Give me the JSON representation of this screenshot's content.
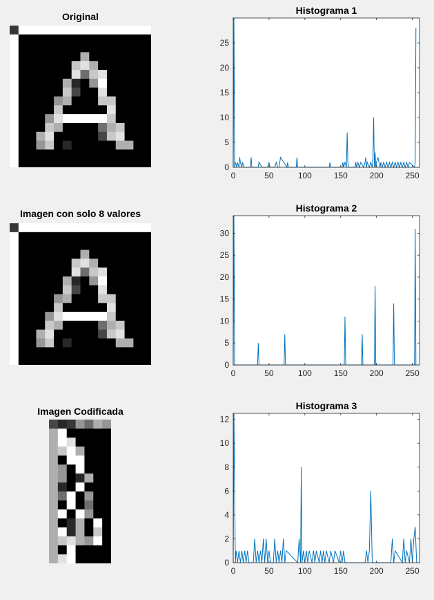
{
  "images": [
    {
      "title": "Original"
    },
    {
      "title": "Imagen con solo 8 valores"
    },
    {
      "title": "Imagen Codificada"
    }
  ],
  "chart_data": [
    {
      "type": "line",
      "title": "Histograma 1",
      "xlim": [
        0,
        260
      ],
      "ylim": [
        0,
        30
      ],
      "xticks": [
        0,
        50,
        100,
        150,
        200,
        250
      ],
      "yticks": [
        0,
        5,
        10,
        15,
        20,
        25
      ],
      "color": "#0072bd",
      "series": [
        {
          "x": [
            0,
            1,
            2,
            3,
            5,
            6,
            8,
            9,
            10,
            12,
            13,
            15,
            24,
            25,
            26,
            30,
            35,
            36,
            40,
            41,
            48,
            50,
            51,
            58,
            60,
            62,
            64,
            65,
            66,
            75,
            76,
            77,
            88,
            89,
            90,
            134,
            135,
            136,
            152,
            153,
            154,
            156,
            158,
            159,
            160,
            161,
            170,
            171,
            172,
            174,
            176,
            178,
            182,
            184,
            185,
            186,
            187,
            190,
            192,
            194,
            195,
            196,
            197,
            198,
            199,
            200,
            202,
            205,
            206,
            208,
            210,
            212,
            214,
            216,
            218,
            220,
            222,
            224,
            226,
            228,
            230,
            232,
            234,
            236,
            238,
            240,
            242,
            244,
            246,
            253,
            254,
            255
          ],
          "y": [
            0,
            30,
            0,
            1,
            0,
            1,
            0,
            2,
            1,
            0,
            1,
            0,
            0,
            2,
            0,
            0,
            0,
            1,
            0,
            0,
            0,
            1,
            0,
            0,
            1,
            0,
            0,
            1,
            2,
            0,
            1,
            0,
            0,
            2,
            0,
            0,
            1,
            0,
            0,
            1,
            0,
            1,
            0,
            7,
            1,
            0,
            0,
            1,
            0,
            1,
            0,
            1,
            0,
            1,
            2,
            0,
            1,
            0,
            1,
            0,
            2,
            10,
            0,
            3,
            0,
            1,
            2,
            0,
            1,
            0,
            1,
            0,
            1,
            0,
            1,
            0,
            1,
            0,
            1,
            0,
            1,
            0,
            1,
            0,
            1,
            0,
            1,
            0,
            1,
            0,
            1,
            28
          ]
        }
      ]
    },
    {
      "type": "line",
      "title": "Histograma 2",
      "xlim": [
        0,
        260
      ],
      "ylim": [
        0,
        34
      ],
      "xticks": [
        0,
        50,
        100,
        150,
        200,
        250
      ],
      "yticks": [
        0,
        5,
        10,
        15,
        20,
        25,
        30
      ],
      "color": "#0072bd",
      "series": [
        {
          "x": [
            0,
            1,
            2,
            34,
            35,
            36,
            71,
            72,
            73,
            155,
            156,
            157,
            179,
            180,
            181,
            197,
            198,
            199,
            223,
            224,
            225,
            253,
            254,
            255
          ],
          "y": [
            0,
            34,
            0,
            0,
            5,
            0,
            0,
            7,
            0,
            0,
            11,
            0,
            0,
            7,
            0,
            0,
            18,
            0,
            0,
            14,
            0,
            0,
            31,
            0
          ]
        }
      ]
    },
    {
      "type": "line",
      "title": "Histograma 3",
      "xlim": [
        0,
        260
      ],
      "ylim": [
        0,
        12.5
      ],
      "xticks": [
        0,
        50,
        100,
        150,
        200,
        250
      ],
      "yticks": [
        0,
        2,
        4,
        6,
        8,
        10,
        12
      ],
      "color": "#0072bd",
      "series": [
        {
          "x": [
            0,
            1,
            3,
            4,
            6,
            8,
            10,
            12,
            14,
            16,
            18,
            20,
            22,
            28,
            30,
            32,
            34,
            36,
            38,
            40,
            42,
            44,
            46,
            48,
            50,
            52,
            56,
            58,
            60,
            62,
            64,
            66,
            68,
            70,
            72,
            74,
            90,
            92,
            94,
            95,
            96,
            98,
            100,
            102,
            104,
            106,
            110,
            112,
            114,
            116,
            120,
            122,
            124,
            126,
            128,
            130,
            134,
            136,
            140,
            142,
            148,
            150,
            152,
            154,
            156,
            184,
            186,
            188,
            190,
            192,
            194,
            220,
            222,
            224,
            226,
            236,
            238,
            240,
            242,
            246,
            248,
            250,
            252,
            254,
            256
          ],
          "y": [
            0,
            12.5,
            0,
            1,
            0,
            1,
            0,
            1,
            0,
            1,
            0,
            1,
            0,
            0,
            2,
            0,
            1,
            0,
            1,
            0,
            2,
            0,
            2,
            0,
            1,
            0,
            0,
            2,
            0,
            1,
            0,
            1,
            0,
            2,
            0,
            1,
            0,
            2,
            0,
            8,
            0,
            1,
            0,
            1,
            0,
            1,
            0,
            1,
            0,
            1,
            0,
            1,
            0,
            1,
            0,
            1,
            0,
            1,
            0,
            1,
            0,
            1,
            0,
            1,
            0,
            0,
            1,
            0,
            1,
            6,
            0,
            0,
            2,
            0,
            1,
            0,
            2,
            0,
            1,
            0,
            2,
            0,
            2,
            3,
            0
          ]
        }
      ]
    }
  ]
}
